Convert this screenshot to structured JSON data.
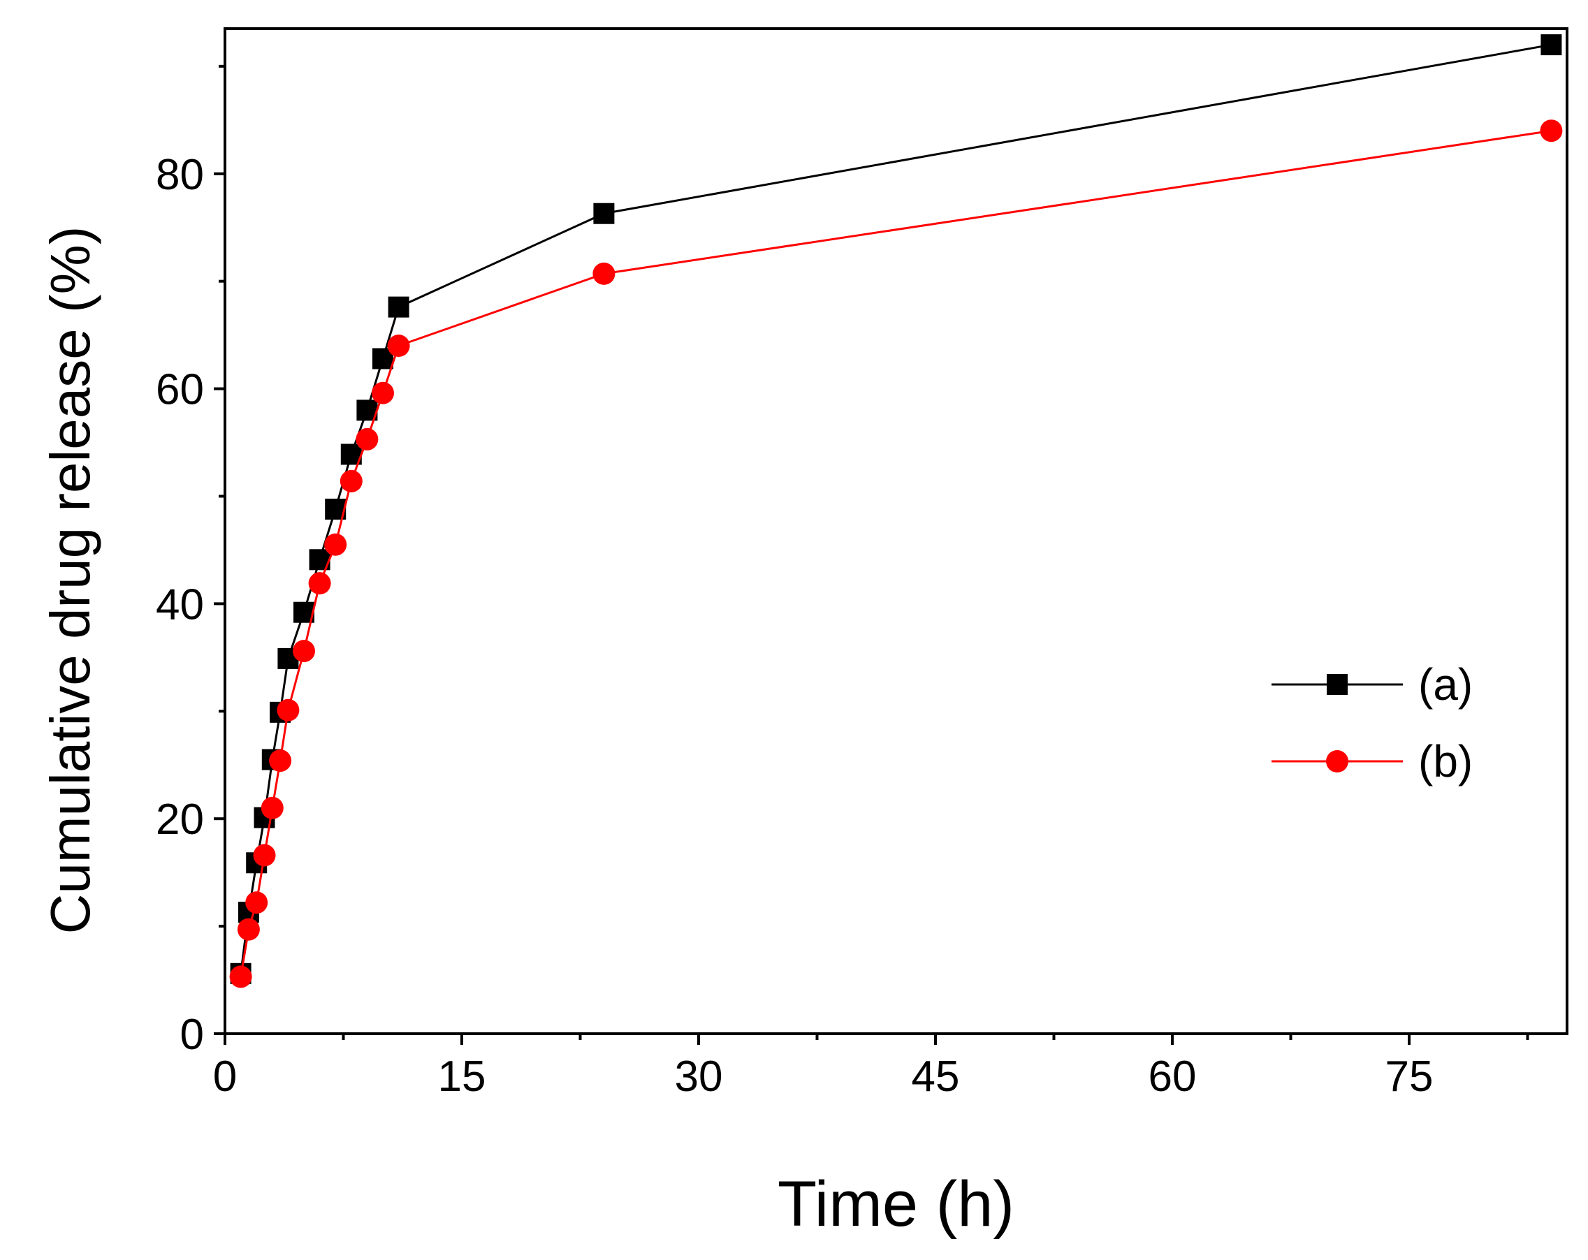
{
  "chart_data": {
    "type": "line",
    "title": "",
    "xlabel": "Time (h)",
    "ylabel": "Cumulative drug release (%)",
    "xlim": [
      0,
      85
    ],
    "ylim": [
      0,
      93.5
    ],
    "xticks": [
      0,
      15,
      30,
      45,
      60,
      75
    ],
    "xtick_labels": [
      "0",
      "15",
      "30",
      "45",
      "60",
      "75"
    ],
    "yticks": [
      0,
      20,
      40,
      60,
      80
    ],
    "ytick_labels": [
      "0",
      "20",
      "40",
      "60",
      "80"
    ],
    "legend_position": "center-right",
    "series": [
      {
        "name": "(a)",
        "label": "(a)",
        "color": "#000000",
        "marker": "square",
        "x": [
          1,
          1.5,
          2,
          2.5,
          3,
          3.5,
          4,
          5,
          6,
          7,
          8,
          9,
          10,
          11,
          24,
          84
        ],
        "y": [
          5.6,
          11.3,
          15.9,
          20.1,
          25.5,
          29.9,
          34.9,
          39.2,
          44.1,
          48.8,
          53.9,
          58.0,
          62.8,
          67.6,
          76.3,
          92.0
        ]
      },
      {
        "name": "(b)",
        "label": "(b)",
        "color": "#ff0000",
        "marker": "circle",
        "x": [
          1,
          1.5,
          2,
          2.5,
          3,
          3.5,
          4,
          5,
          6,
          7,
          8,
          9,
          10,
          11,
          24,
          84
        ],
        "y": [
          5.3,
          9.7,
          12.2,
          16.6,
          21.0,
          25.4,
          30.1,
          35.6,
          41.9,
          45.5,
          51.4,
          55.3,
          59.6,
          64.0,
          70.7,
          84.0
        ]
      }
    ]
  }
}
